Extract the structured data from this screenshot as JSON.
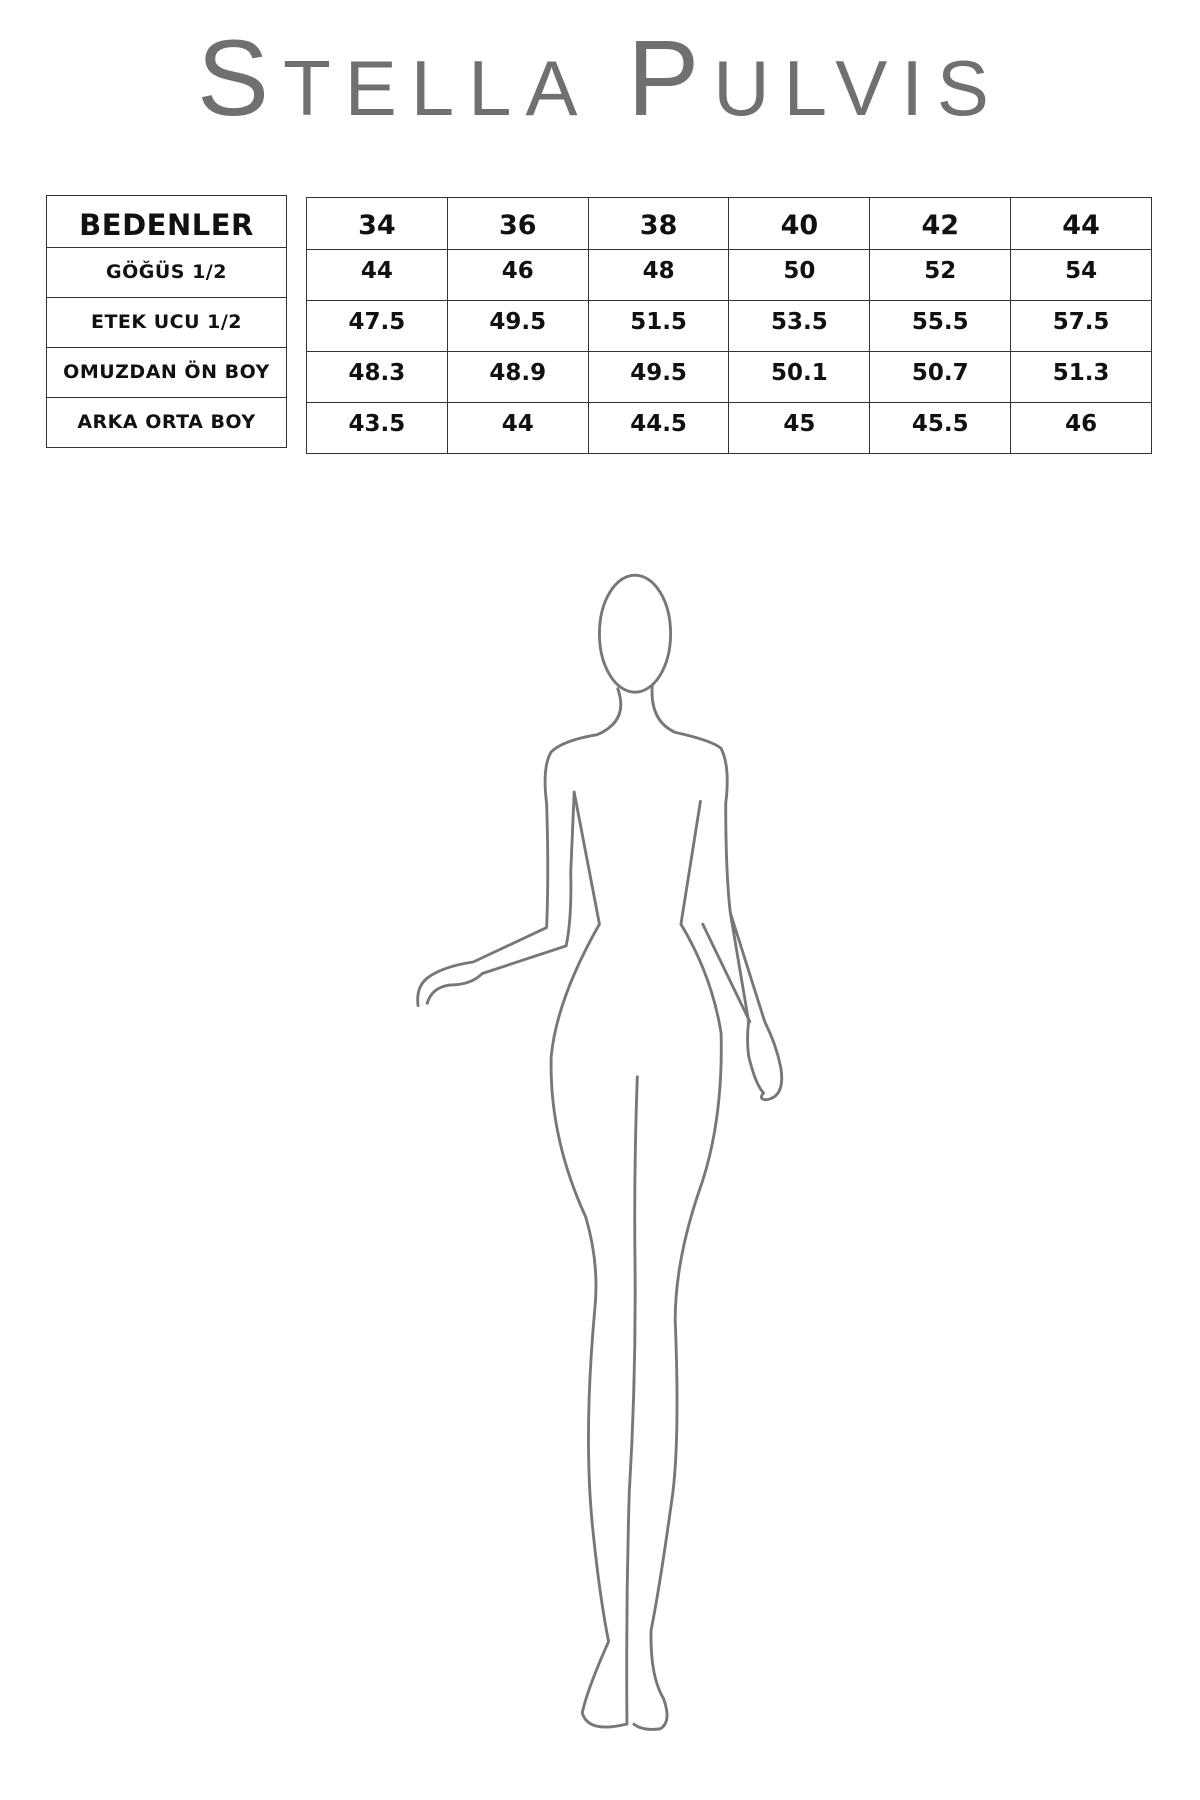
{
  "brand": {
    "logo_first_initial": "S",
    "logo_first_rest": "TELLA",
    "logo_second_initial": "P",
    "logo_second_rest": "ULVIS",
    "color": "#707070"
  },
  "size_table": {
    "header_label": "BEDENLER",
    "sizes": [
      "34",
      "36",
      "38",
      "40",
      "42",
      "44"
    ],
    "rows": [
      {
        "label": "GÖĞÜS 1/2",
        "values": [
          "44",
          "46",
          "48",
          "50",
          "52",
          "54"
        ]
      },
      {
        "label": "ETEK UCU 1/2",
        "values": [
          "47.5",
          "49.5",
          "51.5",
          "53.5",
          "55.5",
          "57.5"
        ]
      },
      {
        "label": "OMUZDAN ÖN BOY",
        "values": [
          "48.3",
          "48.9",
          "49.5",
          "50.1",
          "50.7",
          "51.3"
        ]
      },
      {
        "label": "ARKA ORTA BOY",
        "values": [
          "43.5",
          "44",
          "44.5",
          "45",
          "45.5",
          "46"
        ]
      }
    ]
  },
  "illustration": {
    "icon": "female-body-silhouette-icon",
    "stroke_color": "#777777"
  }
}
